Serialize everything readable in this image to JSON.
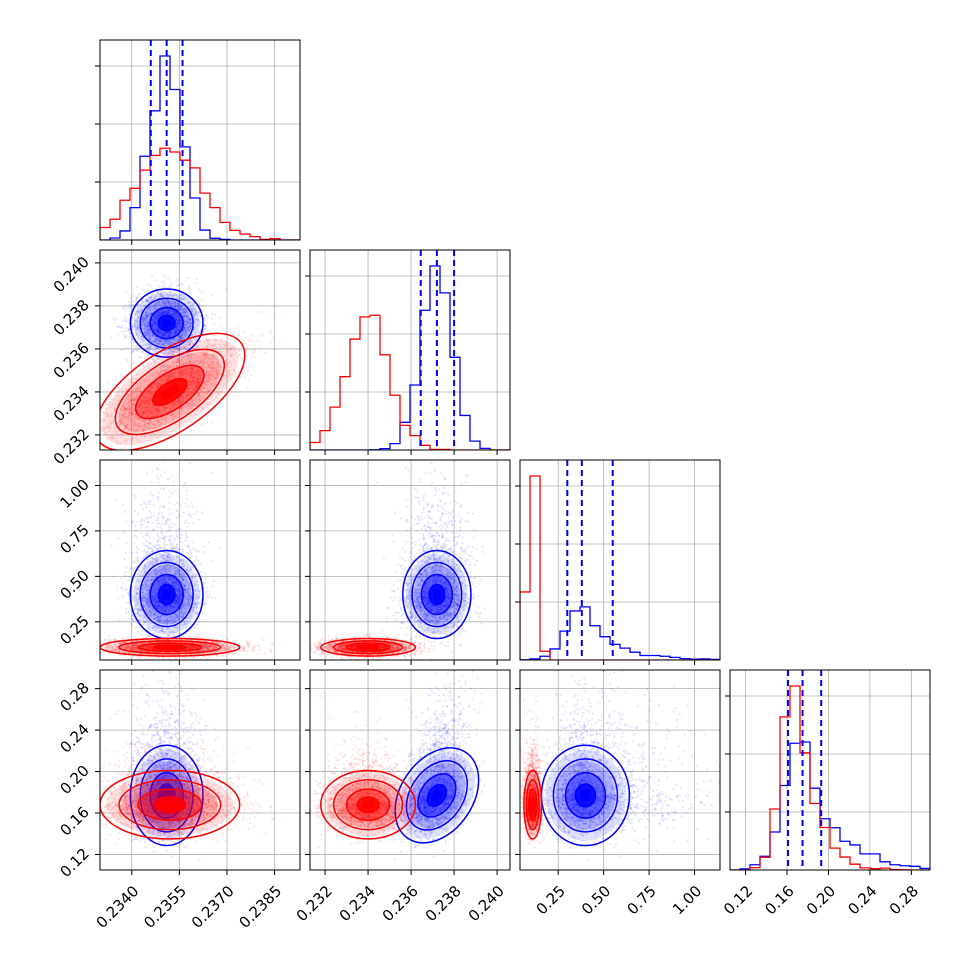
{
  "chart_data": {
    "type": "corner",
    "title": "",
    "grid": true,
    "colors": {
      "series_a": "#0000ff",
      "series_b": "#ff0000"
    },
    "series": [
      {
        "color": "#0000ff",
        "means": [
          0.2351,
          0.2372,
          0.4,
          0.177
        ],
        "sds": [
          0.00052,
          0.00072,
          0.11,
          0.022
        ],
        "corr": [
          [
            1,
            0,
            0,
            0
          ],
          [
            0,
            1,
            0,
            0.35
          ],
          [
            0,
            0,
            1,
            0
          ],
          [
            0,
            0.35,
            0,
            1
          ]
        ],
        "quantiles": [
          [
            0.2346,
            0.2351,
            0.2356
          ],
          [
            0.23645,
            0.2372,
            0.238
          ],
          [
            0.3,
            0.38,
            0.55
          ],
          [
            0.161,
            0.175,
            0.193
          ]
        ],
        "skew": [
          1,
          1,
          3,
          2.5
        ]
      },
      {
        "color": "#ff0000",
        "means": [
          0.2352,
          0.234,
          0.11,
          0.168
        ],
        "sds": [
          0.001,
          0.001,
          0.022,
          0.015
        ],
        "corr": [
          [
            1,
            0.75,
            0,
            0
          ],
          [
            0.75,
            1,
            0,
            0
          ],
          [
            0,
            0,
            1,
            0
          ],
          [
            0,
            0,
            0,
            1
          ]
        ],
        "skew": [
          1,
          1,
          1,
          2
        ]
      }
    ],
    "parameters": [
      {
        "range": [
          0.233,
          0.2393
        ],
        "ticks": [
          "0.2340",
          "0.2355",
          "0.2370",
          "0.2385"
        ],
        "tick_values": [
          0.234,
          0.2355,
          0.237,
          0.2385
        ]
      },
      {
        "range": [
          0.2313,
          0.2406
        ],
        "ticks": [
          "0.232",
          "0.234",
          "0.236",
          "0.238",
          "0.240"
        ],
        "tick_values": [
          0.232,
          0.234,
          0.236,
          0.238,
          0.24
        ]
      },
      {
        "range": [
          0.04,
          1.14
        ],
        "ticks": [
          "0.25",
          "0.50",
          "0.75",
          "1.00"
        ],
        "tick_values": [
          0.25,
          0.5,
          0.75,
          1.0
        ]
      },
      {
        "range": [
          0.105,
          0.298
        ],
        "ticks": [
          "0.12",
          "0.16",
          "0.20",
          "0.24",
          "0.28"
        ],
        "tick_values": [
          0.12,
          0.16,
          0.2,
          0.24,
          0.28
        ]
      }
    ]
  }
}
